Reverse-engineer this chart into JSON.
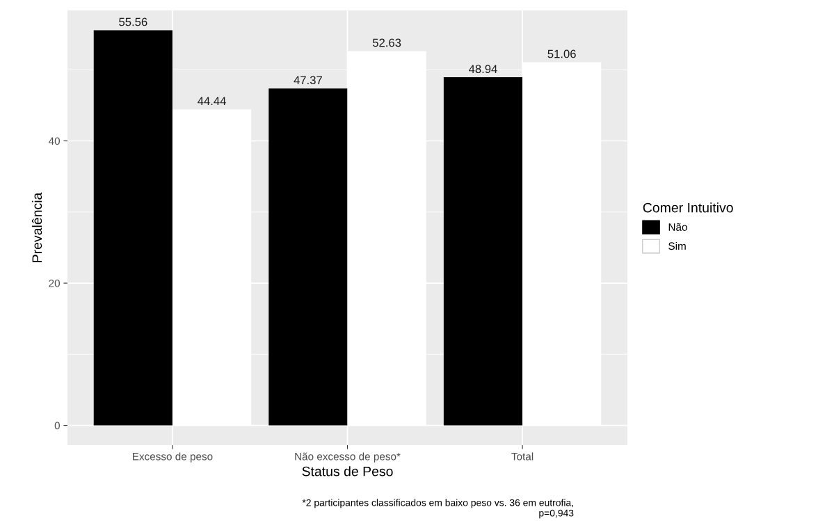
{
  "chart_data": {
    "type": "bar",
    "xlabel": "Status de Peso",
    "ylabel": "Prevalência",
    "legend_title": "Comer Intuitivo",
    "categories": [
      "Excesso de peso",
      "Não excesso de peso*",
      "Total"
    ],
    "series": [
      {
        "name": "Não",
        "color": "#000000",
        "values": [
          55.56,
          47.37,
          48.94
        ]
      },
      {
        "name": "Sim",
        "color": "#ffffff",
        "values": [
          44.44,
          52.63,
          51.06
        ]
      }
    ],
    "ylim": [
      -2.78,
      58.34
    ],
    "yticks": [
      0,
      20,
      40
    ],
    "grid": true,
    "legend": "right",
    "data_labels": true,
    "annotations": [
      "*2 participantes classificados em baixo peso vs. 36 em eutrofia,\np=0,943"
    ]
  }
}
